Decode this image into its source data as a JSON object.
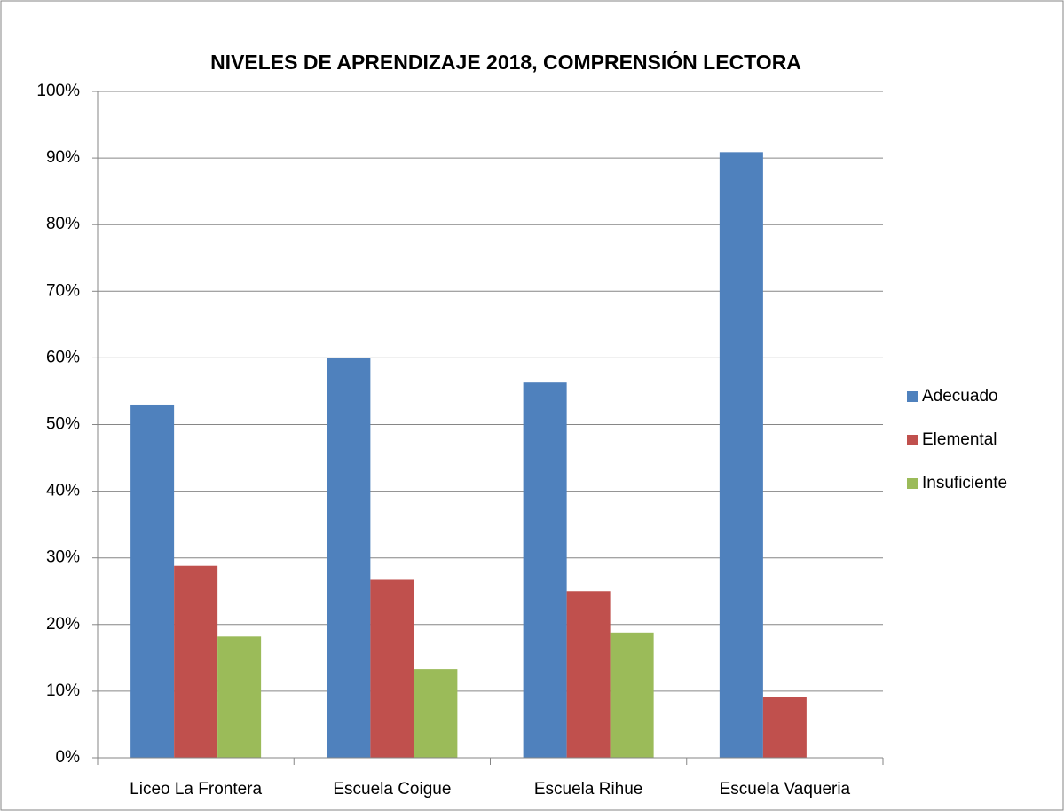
{
  "chart_data": {
    "type": "bar",
    "title": "NIVELES DE APRENDIZAJE 2018, COMPRENSIÓN LECTORA",
    "categories": [
      "Liceo La Frontera",
      "Escuela Coigue",
      "Escuela Rihue",
      "Escuela Vaqueria"
    ],
    "series": [
      {
        "name": "Adecuado",
        "color": "#4f81bd",
        "values": [
          53,
          60,
          56.3,
          90.9
        ]
      },
      {
        "name": "Elemental",
        "color": "#c0504d",
        "values": [
          28.8,
          26.7,
          25,
          9.1
        ]
      },
      {
        "name": "Insuficiente",
        "color": "#9bbb59",
        "values": [
          18.2,
          13.3,
          18.8,
          0
        ]
      }
    ],
    "ylim": [
      0,
      100
    ],
    "yticks": [
      {
        "value": 0,
        "label": "0%"
      },
      {
        "value": 10,
        "label": "10%"
      },
      {
        "value": 20,
        "label": "20%"
      },
      {
        "value": 30,
        "label": "30%"
      },
      {
        "value": 40,
        "label": "40%"
      },
      {
        "value": 50,
        "label": "50%"
      },
      {
        "value": 60,
        "label": "60%"
      },
      {
        "value": 70,
        "label": "70%"
      },
      {
        "value": 80,
        "label": "80%"
      },
      {
        "value": 90,
        "label": "90%"
      },
      {
        "value": 100,
        "label": "100%"
      }
    ],
    "grid": true,
    "legend": "right"
  }
}
